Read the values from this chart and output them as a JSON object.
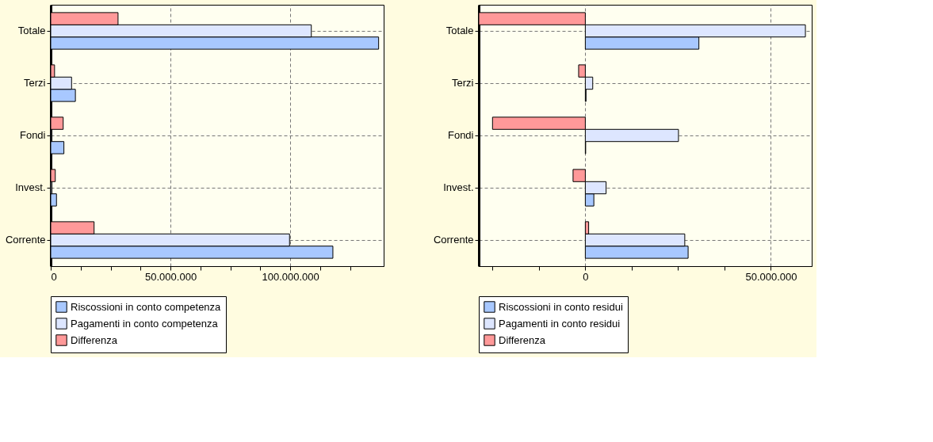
{
  "chart_data": [
    {
      "type": "bar",
      "orientation": "horizontal",
      "categories": [
        "Totale",
        "Terzi",
        "Fondi",
        "Invest.",
        "Corrente"
      ],
      "series": [
        {
          "name": "Riscossioni in conto competenza",
          "color": "#a8c8ff",
          "values": [
            136900000,
            10300000,
            5500000,
            2400000,
            117800000
          ]
        },
        {
          "name": "Pagamenti in conto competenza",
          "color": "#dde6ff",
          "values": [
            108800000,
            8700000,
            300000,
            500000,
            99700000
          ]
        },
        {
          "name": "Differenza",
          "color": "#ff9999",
          "values": [
            28100000,
            1600000,
            5200000,
            1900000,
            18100000
          ]
        }
      ],
      "xlim": [
        0,
        139000000
      ],
      "xticks": [
        0,
        {
          "value": 12500000,
          "label": null
        },
        {
          "value": 25000000,
          "label": null
        },
        {
          "value": 37500000,
          "label": null
        },
        {
          "value": 50000000,
          "label": "50.000.000"
        },
        {
          "value": 62500000,
          "label": null
        },
        {
          "value": 75000000,
          "label": null
        },
        {
          "value": 87500000,
          "label": null
        },
        {
          "value": 100000000,
          "label": "100.000.000"
        },
        {
          "value": 112500000,
          "label": null
        },
        {
          "value": 125000000,
          "label": null
        }
      ],
      "grid": true,
      "legend": "bottom"
    },
    {
      "type": "bar",
      "orientation": "horizontal",
      "categories": [
        "Totale",
        "Terzi",
        "Fondi",
        "Invest.",
        "Corrente"
      ],
      "series": [
        {
          "name": "Riscossioni in conto residui",
          "color": "#a8c8ff",
          "values": [
            30600000,
            200000,
            100000,
            2300000,
            27700000
          ]
        },
        {
          "name": "Pagamenti in conto residui",
          "color": "#dde6ff",
          "values": [
            59300000,
            2000000,
            25100000,
            5600000,
            26800000
          ]
        },
        {
          "name": "Differenza",
          "color": "#ff9999",
          "values": [
            -28700000,
            -1800000,
            -25000000,
            -3300000,
            900000
          ]
        }
      ],
      "xlim": [
        -28700000,
        61000000
      ],
      "xticks": [
        {
          "value": -25000000,
          "label": null
        },
        {
          "value": -12500000,
          "label": null
        },
        0,
        {
          "value": 12500000,
          "label": null
        },
        {
          "value": 25000000,
          "label": null
        },
        {
          "value": 37500000,
          "label": null
        },
        {
          "value": 50000000,
          "label": "50.000.000"
        }
      ],
      "grid": true,
      "legend": "bottom"
    }
  ]
}
